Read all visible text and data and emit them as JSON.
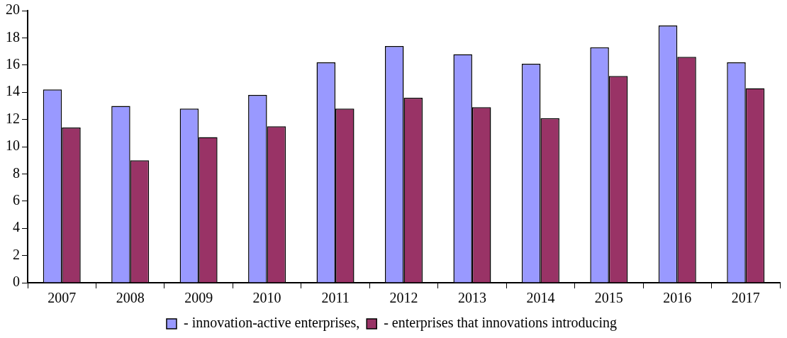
{
  "chart_data": {
    "type": "bar",
    "categories": [
      "2007",
      "2008",
      "2009",
      "2010",
      "2011",
      "2012",
      "2013",
      "2014",
      "2015",
      "2016",
      "2017"
    ],
    "series": [
      {
        "name": "- innovation-active enterprises,",
        "color": "#9999ff",
        "values": [
          14.2,
          13.0,
          12.8,
          13.8,
          16.2,
          17.4,
          16.8,
          16.1,
          17.3,
          18.9,
          16.2
        ]
      },
      {
        "name": "- enterprises that innovations introducing",
        "color": "#993366",
        "values": [
          11.4,
          9.0,
          10.7,
          11.5,
          12.8,
          13.6,
          12.9,
          12.1,
          15.2,
          16.6,
          14.3
        ]
      }
    ],
    "ylim": [
      0,
      20
    ],
    "yticks": [
      0,
      2,
      4,
      6,
      8,
      10,
      12,
      14,
      16,
      18,
      20
    ],
    "grid": false,
    "legend": "bottom"
  }
}
